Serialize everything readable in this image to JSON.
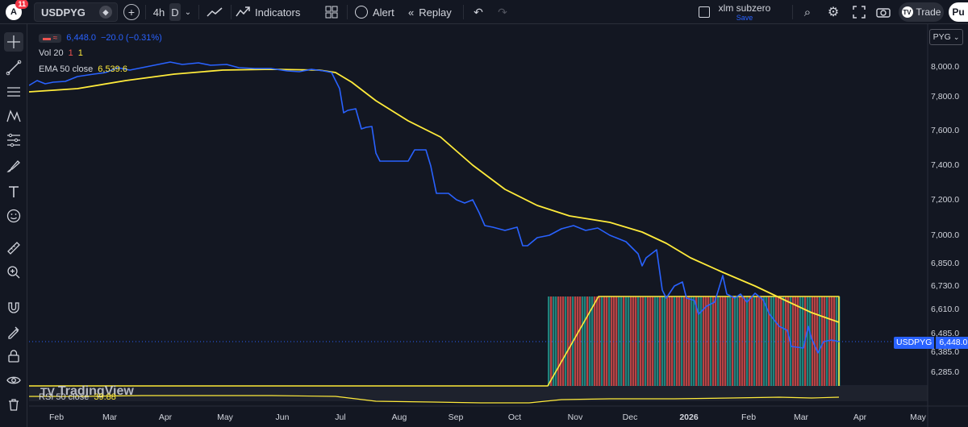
{
  "topbar": {
    "badge_count": "11",
    "symbol": "USDPYG",
    "interval_4h": "4h",
    "interval_d": "D",
    "indicators_label": "Indicators",
    "alert_label": "Alert",
    "replay_label": "Replay",
    "layout_name": "xlm subzero",
    "layout_save": "Save",
    "trade_label": "Trade",
    "publish_label": "Pu"
  },
  "legend": {
    "symbol_value": "6,448.0",
    "symbol_change": "−20.0 (−0.31%)",
    "vol_label": "Vol 20",
    "vol_v1": "1",
    "vol_v2": "1",
    "ema_label": "EMA 50 close",
    "ema_value": "6,539.6",
    "rsi_label": "RSI 50 close",
    "rsi_value": "39.88"
  },
  "price_axis": {
    "currency": "PYG",
    "labels": [
      "8,000.0",
      "7,800.0",
      "7,600.0",
      "7,400.0",
      "7,200.0",
      "7,000.0",
      "6,850.0",
      "6,730.0",
      "6,610.0",
      "6,485.0",
      "6,385.0",
      "6,285.0"
    ],
    "current_symbol": "USDPYG",
    "current_price": "6,448.0"
  },
  "time_axis": {
    "labels": [
      "Feb",
      "Mar",
      "Apr",
      "May",
      "Jun",
      "Jul",
      "Aug",
      "Sep",
      "Oct",
      "Nov",
      "Dec",
      "2026",
      "Feb",
      "Mar",
      "Apr",
      "May"
    ]
  },
  "watermark": "TradingView",
  "colors": {
    "background": "#131722",
    "price_line": "#2962ff",
    "ema_line": "#ffeb3b",
    "vol_up": "#26a69a",
    "vol_down": "#ef5350",
    "badge": "#f23645"
  },
  "chart_data": {
    "type": "line",
    "symbol": "USDPYG",
    "x": [
      "Feb",
      "Mar",
      "Apr",
      "May",
      "Jun",
      "Jul",
      "Aug",
      "Sep",
      "Oct",
      "Nov",
      "Dec",
      "Jan 2026",
      "Feb",
      "Mar"
    ],
    "series": [
      {
        "name": "USDPYG",
        "values": [
          7900,
          7940,
          8010,
          7990,
          7980,
          7960,
          7450,
          7200,
          7000,
          7060,
          6900,
          6720,
          6620,
          6448
        ]
      },
      {
        "name": "EMA 50 close",
        "values": [
          7860,
          7900,
          7950,
          7980,
          7980,
          7960,
          7780,
          7480,
          7230,
          7060,
          7010,
          6820,
          6700,
          6539.6
        ]
      }
    ],
    "ylim": [
      6250,
      8050
    ]
  }
}
